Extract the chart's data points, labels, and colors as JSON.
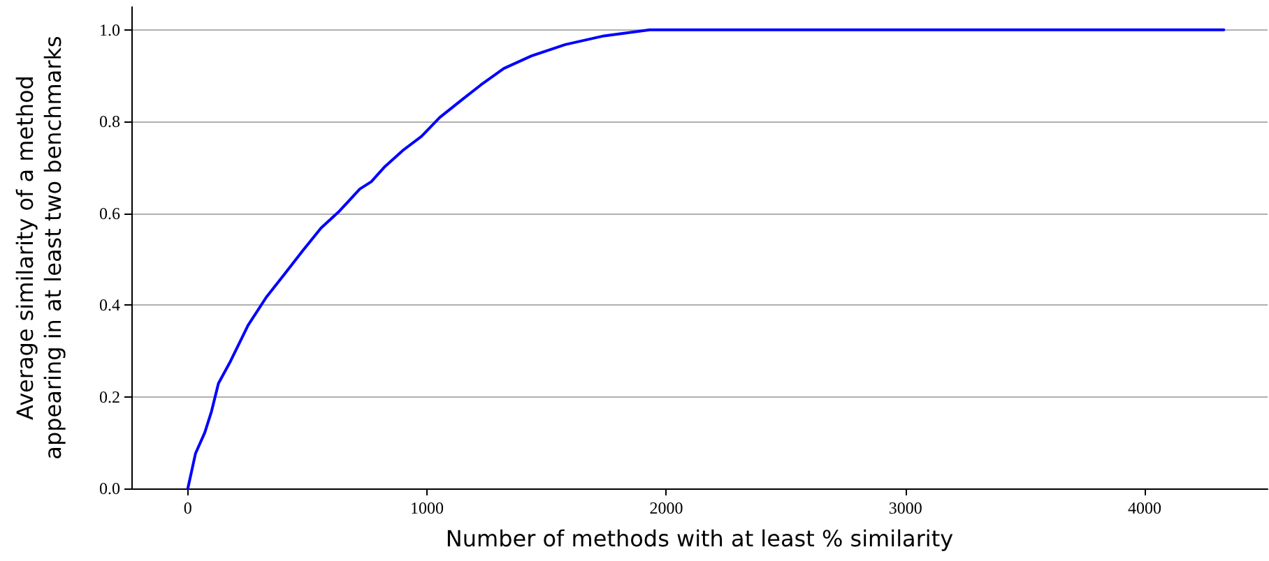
{
  "chart_data": {
    "type": "line",
    "xlabel": "Number of methods with at least % similarity",
    "ylabel": "Average similarity of a method\nappearing in at least two benchmarks",
    "x": [
      0,
      32,
      71,
      99,
      128,
      176,
      252,
      328,
      405,
      481,
      557,
      634,
      719,
      767,
      824,
      901,
      977,
      1053,
      1149,
      1225,
      1321,
      1435,
      1578,
      1740,
      1931,
      4331
    ],
    "series": [
      {
        "color": "#0000ff",
        "values": [
          0,
          0.076,
          0.122,
          0.168,
          0.229,
          0.275,
          0.356,
          0.417,
          0.468,
          0.519,
          0.568,
          0.605,
          0.653,
          0.669,
          0.702,
          0.738,
          0.768,
          0.809,
          0.849,
          0.88,
          0.916,
          0.943,
          0.968,
          0.987,
          1.0,
          1.0
        ]
      }
    ],
    "xlim": [
      -236,
      4514
    ],
    "xticks": [
      0,
      1000,
      2000,
      3000,
      4000
    ],
    "ylim": [
      0,
      1.05
    ],
    "yticks": [
      {
        "value": 0,
        "label": "0.0"
      },
      {
        "value": 0.2,
        "label": "0.2"
      },
      {
        "value": 0.4,
        "label": "0.4"
      },
      {
        "value": 0.6,
        "label": "0.6"
      },
      {
        "value": 0.8,
        "label": "0.8"
      },
      {
        "value": 1,
        "label": "1.0"
      }
    ],
    "grid": "y",
    "marker": "none",
    "line_style": "solid"
  }
}
